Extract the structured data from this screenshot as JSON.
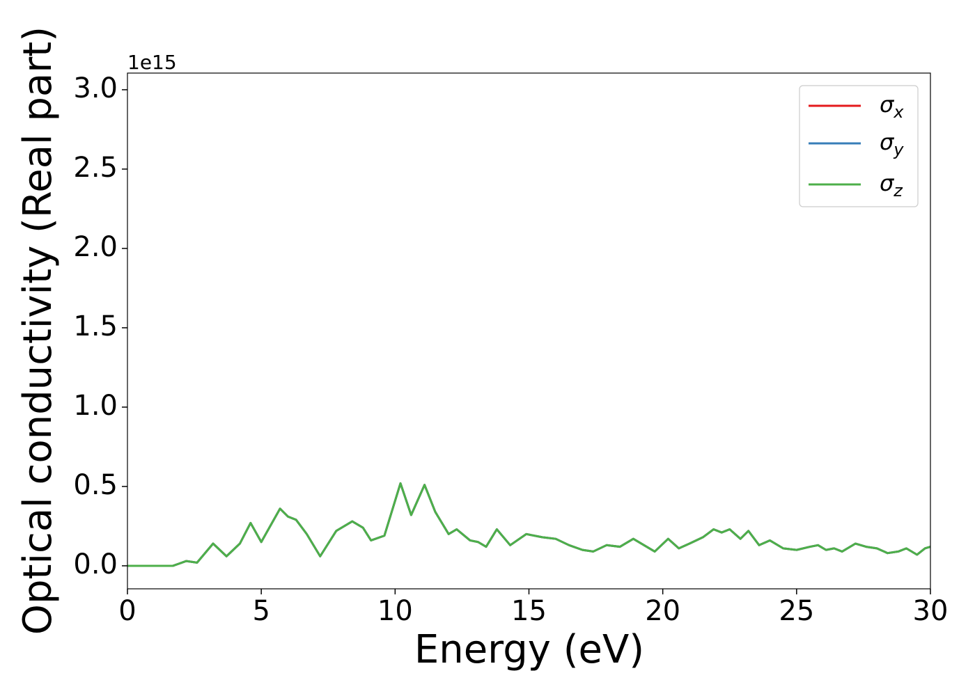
{
  "chart_data": {
    "type": "line",
    "xlabel": "Energy (eV)",
    "ylabel": "Optical conductivity (Real part)",
    "offset_label": "1e15",
    "xlim": [
      0,
      30
    ],
    "ylim": [
      -0.145,
      3.105
    ],
    "xticks": [
      0,
      5,
      10,
      15,
      20,
      25,
      30
    ],
    "yticks": [
      {
        "value": 0,
        "label": "0.0"
      },
      0.5,
      {
        "value": 1,
        "label": "1.0"
      },
      1.5,
      {
        "value": 2,
        "label": "2.0"
      },
      2.5,
      {
        "value": 3,
        "label": "3.0"
      }
    ],
    "legend": "upper right",
    "grid": false,
    "x": [
      0,
      1.7,
      2.2,
      2.6,
      3.2,
      3.7,
      4.2,
      4.6,
      5.0,
      5.7,
      6.0,
      6.3,
      6.7,
      7.2,
      7.8,
      8.4,
      8.8,
      9.1,
      9.6,
      10.2,
      10.6,
      11.1,
      11.5,
      12.0,
      12.3,
      12.8,
      13.1,
      13.4,
      13.8,
      14.3,
      14.9,
      15.5,
      16.0,
      16.5,
      17.0,
      17.4,
      17.9,
      18.4,
      18.9,
      19.3,
      19.7,
      20.2,
      20.6,
      21.0,
      21.5,
      21.9,
      22.2,
      22.5,
      22.9,
      23.2,
      23.6,
      24.0,
      24.5,
      25.0,
      25.5,
      25.8,
      26.1,
      26.4,
      26.7,
      27.2,
      27.6,
      28.0,
      28.4,
      28.8,
      29.1,
      29.5,
      29.8,
      30.0
    ],
    "series": [
      {
        "name": "σx",
        "color": "#e41a1c",
        "values": [
          0,
          0,
          0.03,
          0.02,
          0.14,
          0.06,
          0.14,
          0.27,
          0.15,
          0.36,
          0.31,
          0.29,
          0.2,
          0.06,
          0.22,
          0.28,
          0.24,
          0.16,
          0.19,
          0.52,
          0.32,
          0.51,
          0.34,
          0.2,
          0.23,
          0.16,
          0.15,
          0.12,
          0.23,
          0.13,
          0.2,
          0.18,
          0.17,
          0.13,
          0.1,
          0.09,
          0.13,
          0.12,
          0.17,
          0.13,
          0.09,
          0.17,
          0.11,
          0.14,
          0.18,
          0.23,
          0.21,
          0.23,
          0.17,
          0.22,
          0.13,
          0.16,
          0.11,
          0.1,
          0.12,
          0.13,
          0.1,
          0.11,
          0.09,
          0.14,
          0.12,
          0.11,
          0.08,
          0.09,
          0.11,
          0.07,
          0.11,
          0.12
        ]
      },
      {
        "name": "σy",
        "color": "#377eb8",
        "values": [
          0,
          0,
          0.03,
          0.02,
          0.14,
          0.06,
          0.14,
          0.27,
          0.15,
          0.36,
          0.31,
          0.29,
          0.2,
          0.06,
          0.22,
          0.28,
          0.24,
          0.16,
          0.19,
          0.52,
          0.32,
          0.51,
          0.34,
          0.2,
          0.23,
          0.16,
          0.15,
          0.12,
          0.23,
          0.13,
          0.2,
          0.18,
          0.17,
          0.13,
          0.1,
          0.09,
          0.13,
          0.12,
          0.17,
          0.13,
          0.09,
          0.17,
          0.11,
          0.14,
          0.18,
          0.23,
          0.21,
          0.23,
          0.17,
          0.22,
          0.13,
          0.16,
          0.11,
          0.1,
          0.12,
          0.13,
          0.1,
          0.11,
          0.09,
          0.14,
          0.12,
          0.11,
          0.08,
          0.09,
          0.11,
          0.07,
          0.11,
          0.12
        ]
      },
      {
        "name": "σz",
        "color": "#4daf4a",
        "values": [
          0,
          0,
          0.03,
          0.02,
          0.14,
          0.06,
          0.14,
          0.27,
          0.15,
          0.36,
          0.31,
          0.29,
          0.2,
          0.06,
          0.22,
          0.28,
          0.24,
          0.16,
          0.19,
          0.52,
          0.32,
          0.51,
          0.34,
          0.2,
          0.23,
          0.16,
          0.15,
          0.12,
          0.23,
          0.13,
          0.2,
          0.18,
          0.17,
          0.13,
          0.1,
          0.09,
          0.13,
          0.12,
          0.17,
          0.13,
          0.09,
          0.17,
          0.11,
          0.14,
          0.18,
          0.23,
          0.21,
          0.23,
          0.17,
          0.22,
          0.13,
          0.16,
          0.11,
          0.1,
          0.12,
          0.13,
          0.1,
          0.11,
          0.09,
          0.14,
          0.12,
          0.11,
          0.08,
          0.09,
          0.11,
          0.07,
          0.11,
          0.12
        ]
      }
    ]
  }
}
